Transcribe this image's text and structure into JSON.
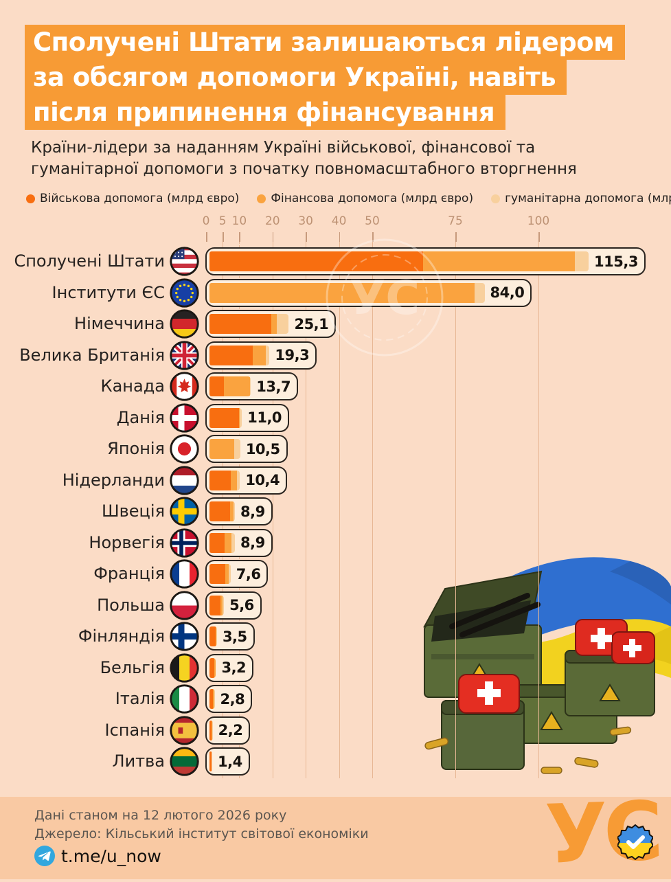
{
  "page": {
    "background": "#fbdcc6",
    "footer_background": "#f9c9a3",
    "accent_orange": "#f79b35"
  },
  "title": {
    "lines": [
      "Сполучені Штати залишаються лідером",
      "за обсягом допомоги Україні, навіть",
      "після припинення фінансування"
    ]
  },
  "subtitle": "Країни-лідери за наданням Україні військової, фінансової та гуманітарної допомоги з початку повномасштабного вторгнення",
  "legend": [
    {
      "label": "Військова допомога (млрд євро)",
      "color": "#f86e10"
    },
    {
      "label": "Фінансова допомога (млрд євро)",
      "color": "#faa33f"
    },
    {
      "label": "гуманітарна допомога (млрд євро)",
      "color": "#f8d09d"
    }
  ],
  "chart_data": {
    "type": "bar",
    "orientation": "horizontal",
    "stacked": true,
    "unit": "млрд євро",
    "axis_ticks": [
      0,
      5,
      10,
      20,
      30,
      40,
      50,
      75,
      100
    ],
    "xlim": [
      0,
      130
    ],
    "grid": true,
    "categories": [
      "Сполучені Штати",
      "Інститути ЄС",
      "Німеччина",
      "Велика Британія",
      "Канада",
      "Данія",
      "Японія",
      "Нідерланди",
      "Швеція",
      "Норвегія",
      "Франція",
      "Польша",
      "Фінляндія",
      "Бельгія",
      "Італія",
      "Іспанія",
      "Литва"
    ],
    "series": [
      {
        "name": "Військова допомога",
        "values": [
          64.9,
          0,
          19.6,
          14.0,
          4.8,
          9.9,
          0,
          7.3,
          7.1,
          5.2,
          5.8,
          4.3,
          2.8,
          2.5,
          2.0,
          1.5,
          1.1
        ]
      },
      {
        "name": "Фінансова допомога",
        "values": [
          46.3,
          80.9,
          1.7,
          4.2,
          8.5,
          0.4,
          8.5,
          2.2,
          1.2,
          2.5,
          1.2,
          0.8,
          0.4,
          0.4,
          0.5,
          0.4,
          0.1
        ]
      },
      {
        "name": "гуманітарна допомога",
        "values": [
          4.1,
          3.1,
          3.8,
          1.1,
          0.4,
          0.7,
          2.0,
          0.9,
          0.6,
          1.2,
          0.6,
          0.5,
          0.3,
          0.3,
          0.3,
          0.3,
          0.2
        ]
      }
    ],
    "totals": [
      115.3,
      84.0,
      25.1,
      19.3,
      13.7,
      11.0,
      10.5,
      10.4,
      8.9,
      8.9,
      7.6,
      5.6,
      3.5,
      3.2,
      2.8,
      2.2,
      1.4
    ],
    "total_labels": [
      "115,3",
      "84,0",
      "25,1",
      "19,3",
      "13,7",
      "11,0",
      "10,5",
      "10,4",
      "8,9",
      "8,9",
      "7,6",
      "5,6",
      "3,5",
      "3,2",
      "2,8",
      "2,2",
      "1,4"
    ],
    "flags": [
      "us",
      "eu",
      "de",
      "uk",
      "ca",
      "dk",
      "jp",
      "nl",
      "se",
      "no",
      "fr",
      "pl",
      "fi",
      "be",
      "it",
      "es",
      "lt"
    ],
    "colors": {
      "military": "#f86e10",
      "financial": "#faa33f",
      "humanitarian": "#f8d09d"
    }
  },
  "watermark": {
    "text": "УС"
  },
  "footer": {
    "updated": "Дані станом на 12 лютого 2026 року",
    "source": "Джерело: Кільський інститут світової економіки",
    "telegram": "t.me/u_now",
    "logo_text": "УС"
  }
}
